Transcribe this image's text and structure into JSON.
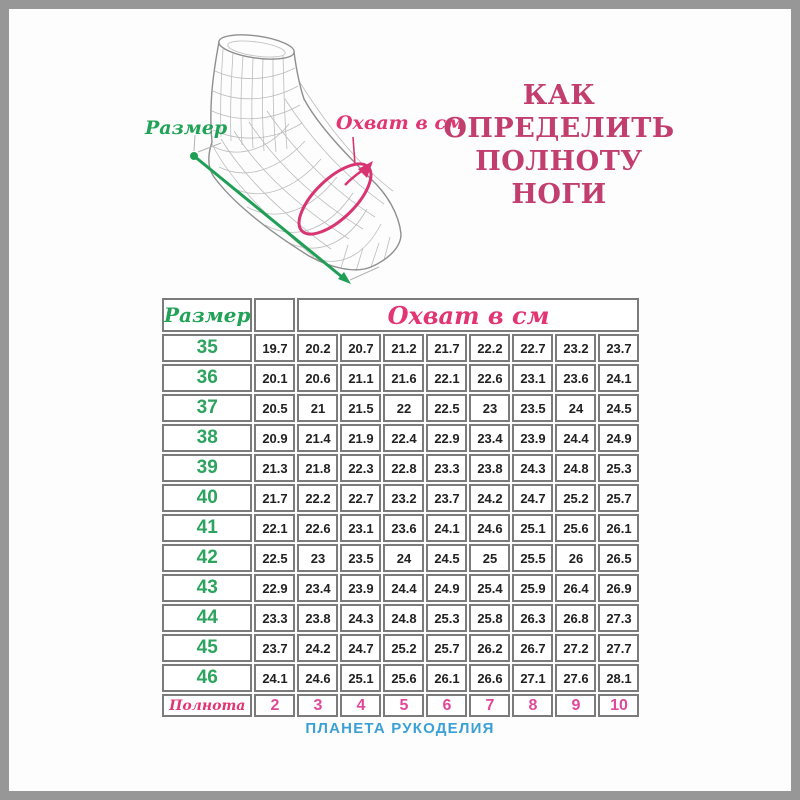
{
  "frame": {
    "title_lines": [
      "КАК",
      "ОПРЕДЕЛИТЬ",
      "ПОЛНОТУ",
      "НОГИ"
    ],
    "footer": "ПЛАНЕТА РУКОДЕЛИЯ"
  },
  "illustration": {
    "length_label": "Размер",
    "girth_label": "Охват в см"
  },
  "table": {
    "size_header": "Размер",
    "girth_header": "Охват в см",
    "fullness_label": "Полнота"
  },
  "chart_data": {
    "type": "table",
    "title": "КАК ОПРЕДЕЛИТЬ ПОЛНОТУ НОГИ",
    "size_column_header": "Размер",
    "group_header": "Охват в см",
    "fullness_row_label": "Полнота",
    "fullness_values": [
      "2",
      "3",
      "4",
      "5",
      "6",
      "7",
      "8",
      "9",
      "10"
    ],
    "rows": [
      {
        "size": "35",
        "girth_cm": [
          "19.7",
          "20.2",
          "20.7",
          "21.2",
          "21.7",
          "22.2",
          "22.7",
          "23.2",
          "23.7"
        ]
      },
      {
        "size": "36",
        "girth_cm": [
          "20.1",
          "20.6",
          "21.1",
          "21.6",
          "22.1",
          "22.6",
          "23.1",
          "23.6",
          "24.1"
        ]
      },
      {
        "size": "37",
        "girth_cm": [
          "20.5",
          "21",
          "21.5",
          "22",
          "22.5",
          "23",
          "23.5",
          "24",
          "24.5"
        ]
      },
      {
        "size": "38",
        "girth_cm": [
          "20.9",
          "21.4",
          "21.9",
          "22.4",
          "22.9",
          "23.4",
          "23.9",
          "24.4",
          "24.9"
        ]
      },
      {
        "size": "39",
        "girth_cm": [
          "21.3",
          "21.8",
          "22.3",
          "22.8",
          "23.3",
          "23.8",
          "24.3",
          "24.8",
          "25.3"
        ]
      },
      {
        "size": "40",
        "girth_cm": [
          "21.7",
          "22.2",
          "22.7",
          "23.2",
          "23.7",
          "24.2",
          "24.7",
          "25.2",
          "25.7"
        ]
      },
      {
        "size": "41",
        "girth_cm": [
          "22.1",
          "22.6",
          "23.1",
          "23.6",
          "24.1",
          "24.6",
          "25.1",
          "25.6",
          "26.1"
        ]
      },
      {
        "size": "42",
        "girth_cm": [
          "22.5",
          "23",
          "23.5",
          "24",
          "24.5",
          "25",
          "25.5",
          "26",
          "26.5"
        ]
      },
      {
        "size": "43",
        "girth_cm": [
          "22.9",
          "23.4",
          "23.9",
          "24.4",
          "24.9",
          "25.4",
          "25.9",
          "26.4",
          "26.9"
        ]
      },
      {
        "size": "44",
        "girth_cm": [
          "23.3",
          "23.8",
          "24.3",
          "24.8",
          "25.3",
          "25.8",
          "26.3",
          "26.8",
          "27.3"
        ]
      },
      {
        "size": "45",
        "girth_cm": [
          "23.7",
          "24.2",
          "24.7",
          "25.2",
          "25.7",
          "26.2",
          "26.7",
          "27.2",
          "27.7"
        ]
      },
      {
        "size": "46",
        "girth_cm": [
          "24.1",
          "24.6",
          "25.1",
          "25.6",
          "26.1",
          "26.6",
          "27.1",
          "27.6",
          "28.1"
        ]
      }
    ]
  },
  "colors": {
    "green": "#21a257",
    "accent_pink": "#e23573",
    "title_pink": "#c13e6e",
    "fullness_pink": "#e0489a",
    "footer_blue": "#3aa0d6",
    "cell_border_gray": "#7b7b7b",
    "frame_gray": "#979797"
  }
}
